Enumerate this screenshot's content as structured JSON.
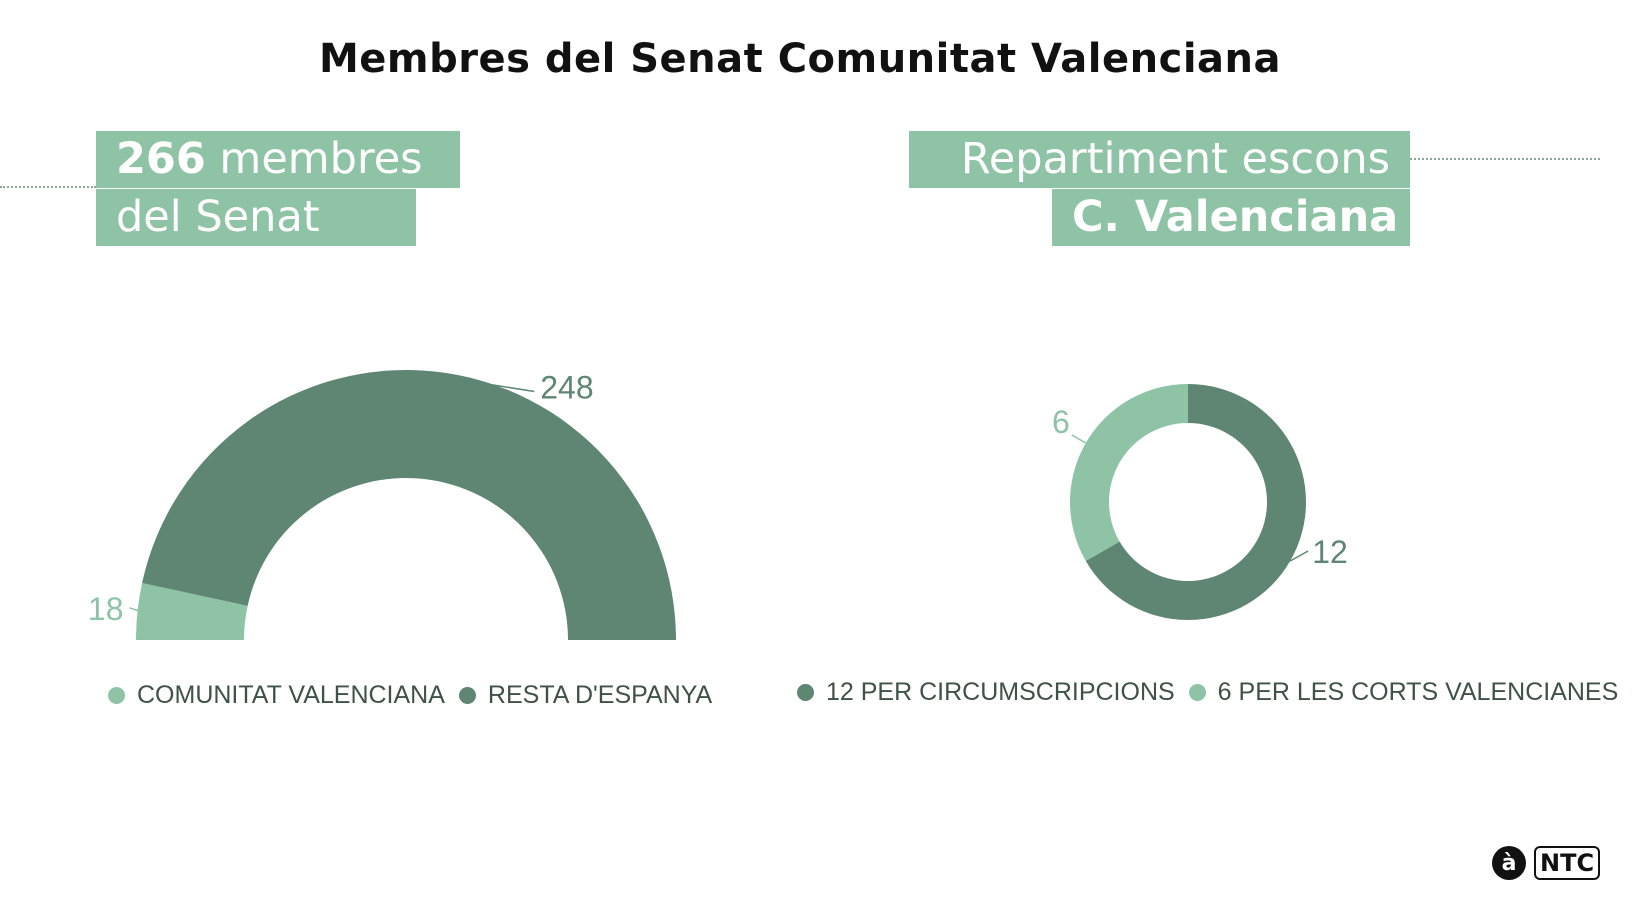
{
  "title": "Membres del Senat Comunitat Valenciana",
  "left_tag": {
    "line1_bold": "266",
    "line1_rest": " membres",
    "line2": "del Senat"
  },
  "right_tag": {
    "line1": "Repartiment escons",
    "line2": "C. Valenciana"
  },
  "colors": {
    "light_green": "#8fc3a6",
    "dark_green": "#5e8672",
    "text": "#3f5248"
  },
  "logo": {
    "mark": "à",
    "text": "NTC"
  },
  "chart_data": [
    {
      "type": "pie",
      "subtype": "semi-donut",
      "categories": [
        "COMUNITAT VALENCIANA",
        "RESTA D'ESPANYA"
      ],
      "values": [
        18,
        248
      ],
      "data_labels": [
        "18",
        "248"
      ],
      "colors": [
        "#8fc3a6",
        "#5e8672"
      ],
      "legend_position": "bottom"
    },
    {
      "type": "pie",
      "subtype": "donut",
      "categories": [
        "12 PER CIRCUMSCRIPCIONS",
        "6 PER LES CORTS VALENCIANES"
      ],
      "values": [
        12,
        6
      ],
      "data_labels": [
        "12",
        "6"
      ],
      "colors": [
        "#5e8672",
        "#8fc3a6"
      ],
      "legend_position": "bottom"
    }
  ]
}
